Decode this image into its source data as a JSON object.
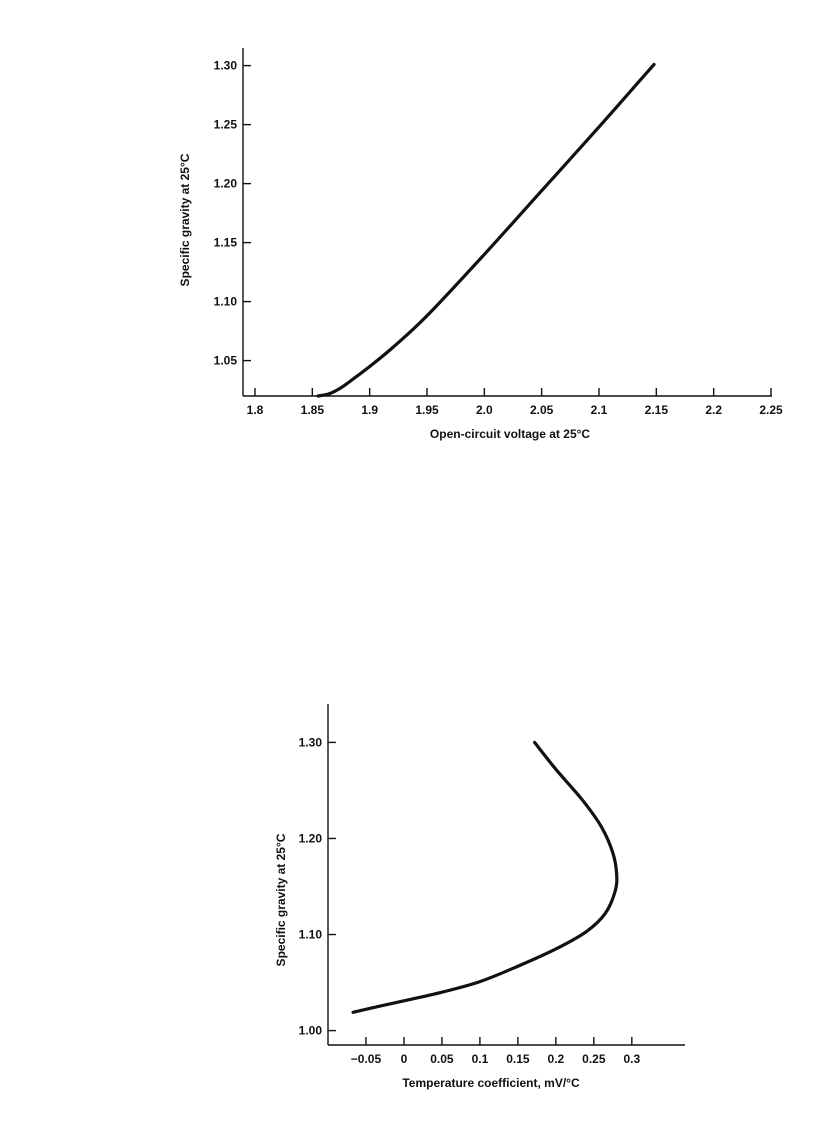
{
  "chart_data": [
    {
      "type": "line",
      "title": "",
      "xlabel": "Open-circuit voltage at 25°C",
      "ylabel": "Specific gravity at 25°C",
      "xlim": [
        1.8,
        2.25
      ],
      "ylim": [
        1.02,
        1.32
      ],
      "xticks": [
        1.8,
        1.85,
        1.9,
        1.95,
        2.0,
        2.05,
        2.1,
        2.15,
        2.2,
        2.25
      ],
      "xtick_labels": [
        "1.8",
        "1.85",
        "1.9",
        "1.95",
        "2.0",
        "2.05",
        "2.1",
        "2.15",
        "2.2",
        "2.25"
      ],
      "yticks": [
        1.05,
        1.1,
        1.15,
        1.2,
        1.25,
        1.3
      ],
      "ytick_labels": [
        "1.05",
        "1.10",
        "1.15",
        "1.20",
        "1.25",
        "1.30"
      ],
      "grid": false,
      "series": [
        {
          "x": [
            1.855,
            1.865,
            1.875,
            1.885,
            1.9,
            1.92,
            1.95,
            2.0,
            2.05,
            2.1,
            2.148
          ],
          "y": [
            1.02,
            1.022,
            1.027,
            1.034,
            1.045,
            1.061,
            1.088,
            1.14,
            1.194,
            1.248,
            1.301
          ]
        }
      ]
    },
    {
      "type": "line",
      "title": "",
      "xlabel": "Temperature coefficient, mV/°C",
      "ylabel": "Specific gravity at 25°C",
      "xlim": [
        -0.1,
        0.37
      ],
      "ylim": [
        0.985,
        1.34
      ],
      "xticks": [
        -0.05,
        0,
        0.05,
        0.1,
        0.15,
        0.2,
        0.25,
        0.3
      ],
      "xtick_labels": [
        "−0.05",
        "0",
        "0.05",
        "0.1",
        "0.15",
        "0.2",
        "0.25",
        "0.3"
      ],
      "yticks": [
        1.0,
        1.1,
        1.2,
        1.3
      ],
      "ytick_labels": [
        "1.00",
        "1.10",
        "1.20",
        "1.30"
      ],
      "grid": false,
      "series": [
        {
          "x": [
            -0.067,
            -0.04,
            0.0,
            0.05,
            0.1,
            0.15,
            0.2,
            0.24,
            0.265,
            0.278,
            0.28,
            0.275,
            0.26,
            0.235,
            0.2,
            0.172
          ],
          "y": [
            1.019,
            1.024,
            1.031,
            1.04,
            1.051,
            1.067,
            1.085,
            1.103,
            1.122,
            1.145,
            1.163,
            1.185,
            1.212,
            1.24,
            1.272,
            1.3
          ]
        }
      ]
    }
  ]
}
